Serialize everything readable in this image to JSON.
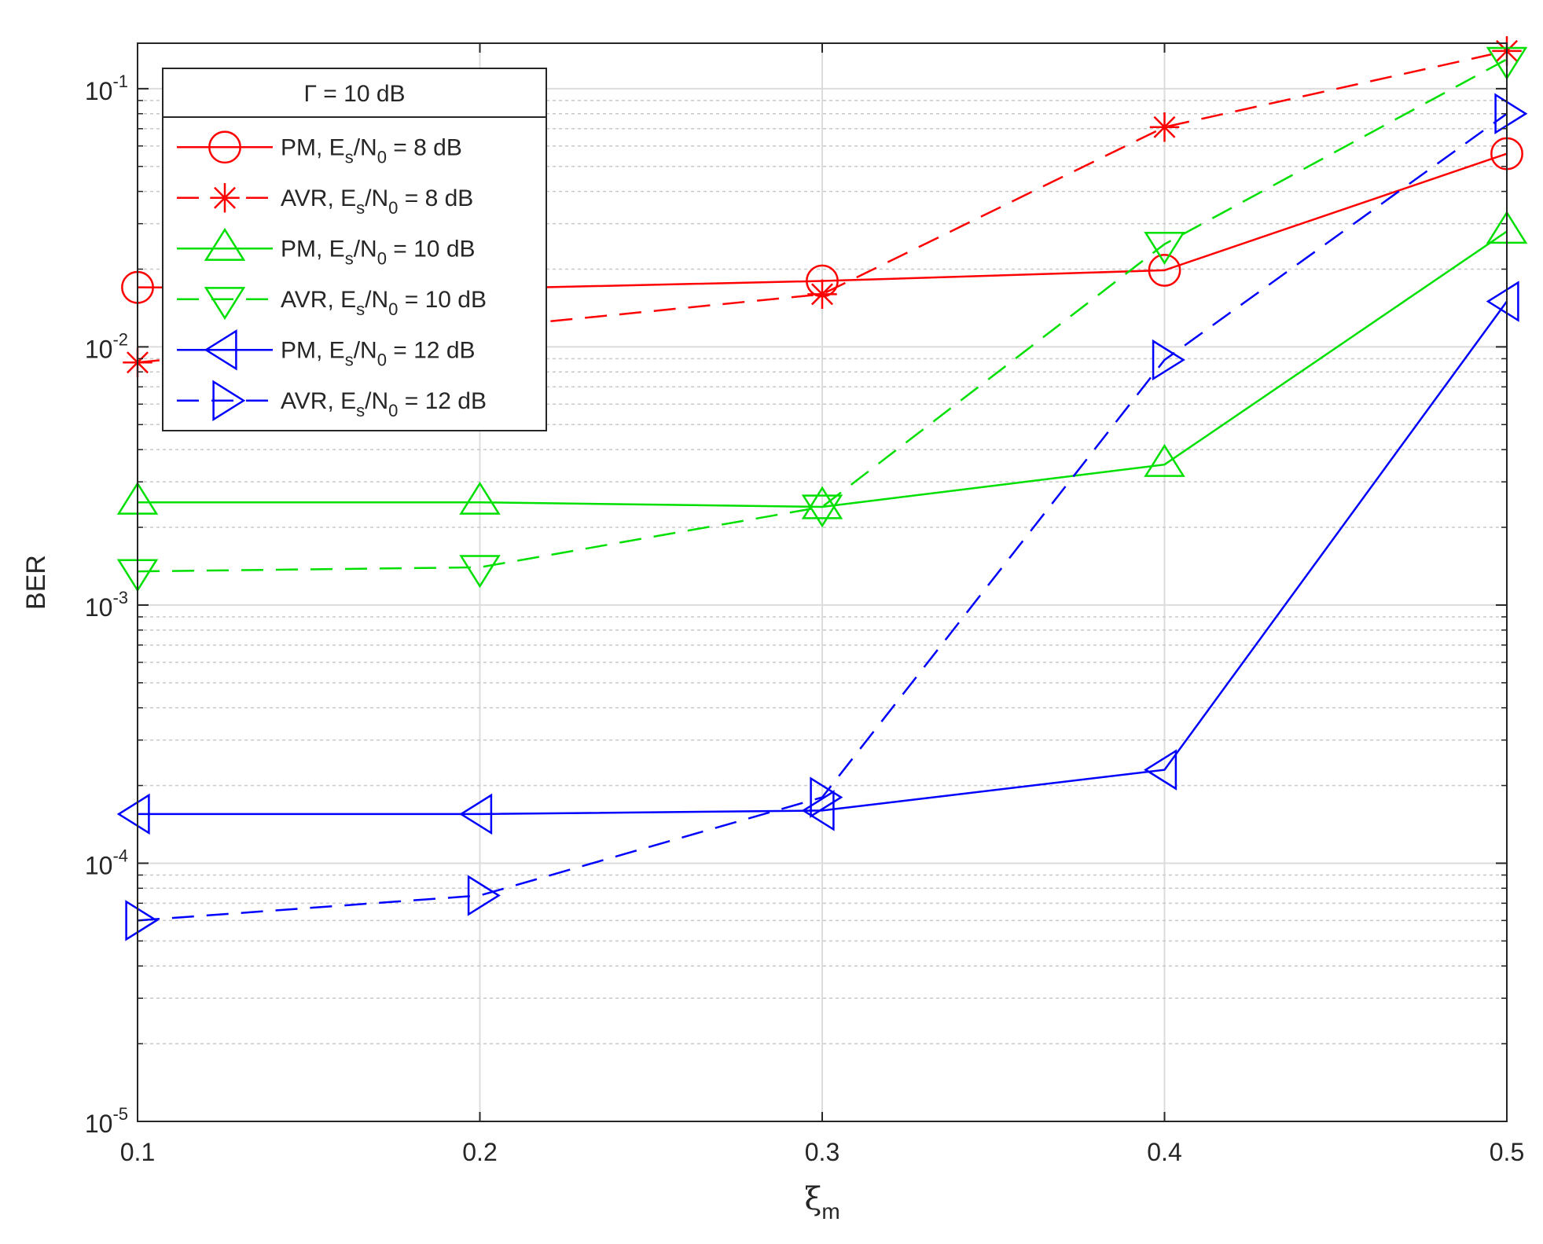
{
  "chart_data": {
    "type": "line",
    "title": "",
    "xlabel": "ξ",
    "xlabel_sub": "m",
    "ylabel": "BER",
    "yscale": "log",
    "xlim": [
      0.1,
      0.5
    ],
    "ylim": [
      1e-05,
      0.15
    ],
    "x": [
      0.1,
      0.2,
      0.3,
      0.4,
      0.5
    ],
    "x_tick_labels": [
      "0.1",
      "0.2",
      "0.3",
      "0.4",
      "0.5"
    ],
    "y_tick_labels": [
      {
        "base": "10",
        "exp": "-5",
        "value": 1e-05
      },
      {
        "base": "10",
        "exp": "-4",
        "value": 0.0001
      },
      {
        "base": "10",
        "exp": "-3",
        "value": 0.001
      },
      {
        "base": "10",
        "exp": "-2",
        "value": 0.01
      },
      {
        "base": "10",
        "exp": "-1",
        "value": 0.1
      }
    ],
    "grid": true,
    "minor_grid": true,
    "legend_position": "top-left",
    "legend_title": "Γ = 10 dB",
    "series": [
      {
        "label_a": "PM, E",
        "label_sub1": "s",
        "label_b": "/N",
        "label_sub2": "0",
        "label_c": " = 8 dB",
        "color": "#ff0000",
        "dash": "solid",
        "marker": "circle",
        "values": [
          0.017,
          0.0168,
          0.018,
          0.0198,
          0.056
        ]
      },
      {
        "label_a": "AVR, E",
        "label_sub1": "s",
        "label_b": "/N",
        "label_sub2": "0",
        "label_c": " = 8 dB",
        "color": "#ff0000",
        "dash": "dashed",
        "marker": "star",
        "values": [
          0.0087,
          0.0118,
          0.016,
          0.071,
          0.14
        ]
      },
      {
        "label_a": "PM, E",
        "label_sub1": "s",
        "label_b": "/N",
        "label_sub2": "0",
        "label_c": " = 10 dB",
        "color": "#00e000",
        "dash": "solid",
        "marker": "triangle-up",
        "values": [
          0.0025,
          0.0025,
          0.0024,
          0.0035,
          0.028
        ]
      },
      {
        "label_a": "AVR, E",
        "label_sub1": "s",
        "label_b": "/N",
        "label_sub2": "0",
        "label_c": " = 10 dB",
        "color": "#00e000",
        "dash": "dashed",
        "marker": "triangle-down",
        "values": [
          0.00135,
          0.0014,
          0.0024,
          0.025,
          0.13
        ]
      },
      {
        "label_a": "PM, E",
        "label_sub1": "s",
        "label_b": "/N",
        "label_sub2": "0",
        "label_c": " = 12 dB",
        "color": "#0000ff",
        "dash": "solid",
        "marker": "triangle-left",
        "values": [
          0.000155,
          0.000155,
          0.00016,
          0.00023,
          0.015
        ]
      },
      {
        "label_a": "AVR, E",
        "label_sub1": "s",
        "label_b": "/N",
        "label_sub2": "0",
        "label_c": " = 12 dB",
        "color": "#0000ff",
        "dash": "dashed",
        "marker": "triangle-right",
        "values": [
          6e-05,
          7.5e-05,
          0.00018,
          0.0089,
          0.08
        ]
      }
    ]
  }
}
